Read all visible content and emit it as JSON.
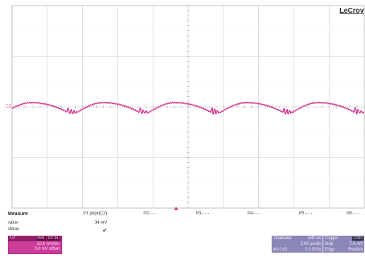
{
  "brand": "LeCroy",
  "channel_marker": "C2",
  "measure": {
    "title": "Measure",
    "row_value": "value",
    "row_status": "status",
    "params": [
      {
        "label": "P1:pkpk(C2)",
        "value": "34 mV",
        "status": "✔"
      },
      {
        "label": "P2:- - -"
      },
      {
        "label": "P3:- - -"
      },
      {
        "label": "P4:- - -"
      },
      {
        "label": "P5:- - -"
      },
      {
        "label": "P6:- - -"
      }
    ]
  },
  "channel": {
    "name": "C2",
    "tag1": "BWL",
    "tag2": "DC1M",
    "vdiv": "50.0 mV/div",
    "offset": "0.0 mV offset",
    "color": "#d6398f"
  },
  "timebase": {
    "title": "Timebase",
    "delay": "-840 ns",
    "tdiv": "2.00 µs/div",
    "samples": "40.0 kS",
    "rate": "2.0 GS/s"
  },
  "trigger": {
    "title": "Trigger",
    "badge": "C2DC",
    "mode": "Stop",
    "level": "7.0 mV",
    "type": "Edge",
    "slope": "Positive"
  },
  "colors": {
    "trace": "#d6398f",
    "grid": "#c8c8c8",
    "panel": "#8a86b8",
    "channel_panel": "#cc3c9b"
  }
}
